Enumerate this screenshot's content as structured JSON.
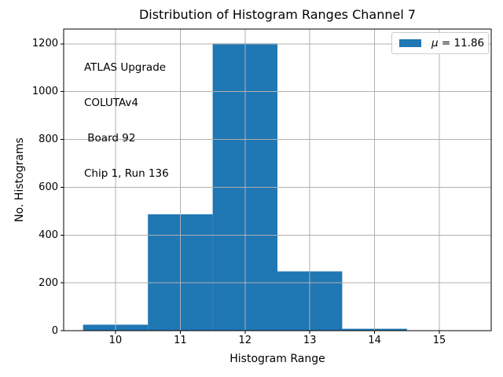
{
  "chart_data": {
    "type": "bar",
    "title": "Distribution of Histogram Ranges Channel 7",
    "xlabel": "Histogram Range",
    "ylabel": "No. Histograms",
    "bin_edges": [
      9.5,
      10.5,
      11.5,
      12.5,
      13.5,
      14.5,
      15.5
    ],
    "values": [
      25,
      487,
      1202,
      248,
      8,
      0
    ],
    "xlim": [
      9.2,
      15.8
    ],
    "ylim": [
      0,
      1262
    ],
    "xtick_values": [
      10,
      11,
      12,
      13,
      14,
      15
    ],
    "xtick_labels": [
      "10",
      "11",
      "12",
      "13",
      "14",
      "15"
    ],
    "ytick_values": [
      0,
      200,
      400,
      600,
      800,
      1000,
      1200
    ],
    "ytick_labels": [
      "0",
      "200",
      "400",
      "600",
      "800",
      "1000",
      "1200"
    ],
    "grid": true,
    "grid_over_bars": true,
    "legend": {
      "position": "upper right",
      "label": "μ = 11.86",
      "mu": "μ",
      "rest": " = 11.86"
    },
    "annotation_lines": [
      "ATLAS Upgrade",
      "COLUTAv4",
      " Board 92",
      "Chip 1, Run 136"
    ],
    "colors": {
      "bar": "#1f77b4",
      "grid": "#b0b0b0",
      "frame": "#000000",
      "legend_border": "#cccccc",
      "background": "#ffffff",
      "text": "#000000"
    }
  }
}
